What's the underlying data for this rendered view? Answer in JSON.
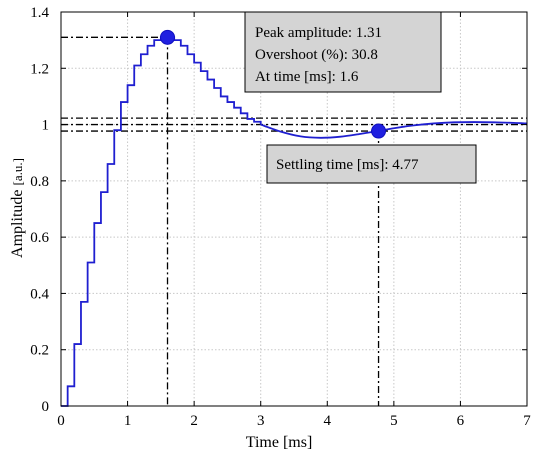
{
  "chart_data": {
    "type": "line",
    "title": "",
    "xlabel": "Time",
    "xlabel_unit": "[ms]",
    "ylabel": "Amplitude",
    "ylabel_unit": "[a.u.]",
    "xlim": [
      0,
      7
    ],
    "ylim": [
      0,
      1.4
    ],
    "xticks": [
      "0",
      "1",
      "2",
      "3",
      "4",
      "5",
      "6",
      "7"
    ],
    "yticks": [
      "0",
      "0.2",
      "0.4",
      "0.6",
      "0.8",
      "1",
      "1.2",
      "1.4"
    ],
    "grid": true,
    "series": [
      {
        "name": "",
        "style": "stairs",
        "color": "#1f1fd0",
        "x": [
          0,
          0.1,
          0.2,
          0.3,
          0.4,
          0.5,
          0.6,
          0.7,
          0.8,
          0.9,
          1.0,
          1.1,
          1.2,
          1.3,
          1.4,
          1.5,
          1.6,
          1.7,
          1.8,
          1.9,
          2.0,
          2.1,
          2.2,
          2.3,
          2.4,
          2.5,
          2.6,
          2.7,
          2.8,
          2.9,
          3.0
        ],
        "y": [
          0,
          0.07,
          0.22,
          0.37,
          0.51,
          0.65,
          0.76,
          0.86,
          0.98,
          1.08,
          1.14,
          1.21,
          1.25,
          1.28,
          1.3,
          1.31,
          1.31,
          1.3,
          1.28,
          1.25,
          1.22,
          1.19,
          1.16,
          1.13,
          1.1,
          1.08,
          1.06,
          1.04,
          1.02,
          1.01,
          1.0
        ]
      },
      {
        "name": "",
        "style": "smooth",
        "color": "#1f1fd0",
        "x": [
          3.0,
          3.3,
          3.6,
          3.9,
          4.2,
          4.5,
          4.77,
          5.0,
          5.3,
          5.6,
          5.9,
          6.2,
          6.5,
          6.8,
          7.0
        ],
        "y": [
          1.0,
          0.975,
          0.958,
          0.953,
          0.957,
          0.967,
          0.977,
          0.987,
          0.997,
          1.004,
          1.008,
          1.009,
          1.008,
          1.006,
          1.004
        ]
      }
    ],
    "markers": [
      {
        "label": "peak",
        "x": 1.6,
        "y": 1.31
      },
      {
        "label": "settling",
        "x": 4.77,
        "y": 0.977
      }
    ],
    "reference_lines": {
      "settling_band": [
        0.977,
        1.0,
        1.023
      ],
      "peak_level": 1.31,
      "peak_time": 1.6,
      "settling_time": 4.77
    },
    "annotations": {
      "peak_box": [
        "Peak amplitude: 1.31",
        "Overshoot (%): 30.8",
        "At time [ms]: 1.6"
      ],
      "settling_box": [
        "Settling time [ms]: 4.77"
      ]
    }
  }
}
